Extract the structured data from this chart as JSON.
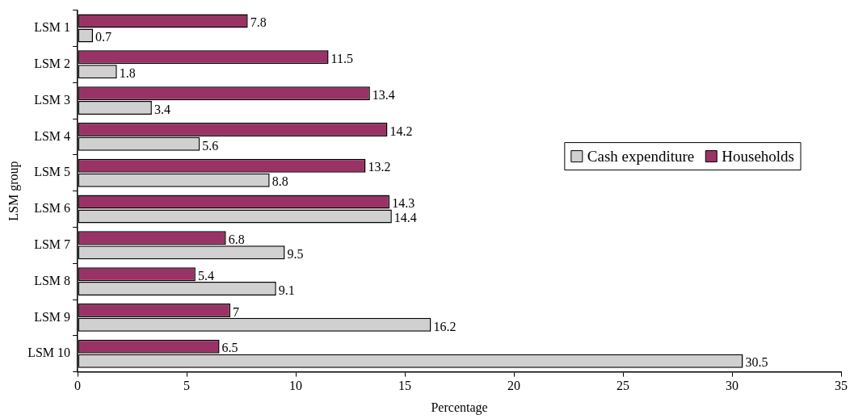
{
  "chart_data": {
    "type": "bar",
    "orientation": "horizontal",
    "xlabel": "Percentage",
    "ylabel": "LSM group",
    "categories": [
      "LSM 1",
      "LSM 2",
      "LSM 3",
      "LSM 4",
      "LSM 5",
      "LSM 6",
      "LSM 7",
      "LSM 8",
      "LSM 9",
      "LSM 10"
    ],
    "series": [
      {
        "name": "Households",
        "color": "#993366",
        "values": [
          7.8,
          11.5,
          13.4,
          14.2,
          13.2,
          14.3,
          6.8,
          5.4,
          7,
          6.5
        ]
      },
      {
        "name": "Cash expenditure",
        "color": "#d0d0d0",
        "values": [
          0.7,
          1.8,
          3.4,
          5.6,
          8.8,
          14.4,
          9.5,
          9.1,
          16.2,
          30.5
        ]
      }
    ],
    "xlim": [
      0,
      35
    ],
    "xticks": [
      0,
      5,
      10,
      15,
      20,
      25,
      30,
      35
    ],
    "grid": false,
    "legend": "right",
    "data_labels": true
  }
}
